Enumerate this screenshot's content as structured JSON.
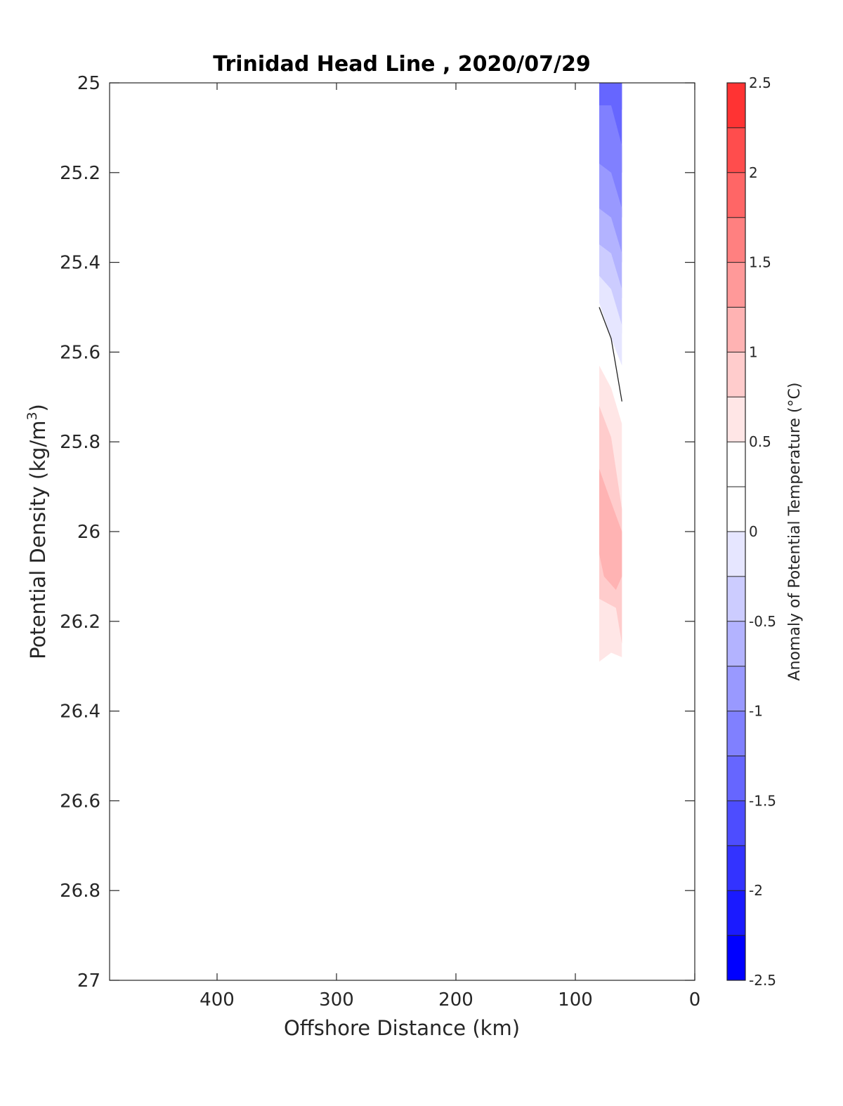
{
  "chart_data": {
    "type": "contourf",
    "title": "Trinidad Head Line , 2020/07/29",
    "xlabel": "Offshore Distance (km)",
    "ylabel": "Potential Density (kg/m",
    "ylabel_superscript": "3",
    "ylabel_suffix": ")",
    "xlim": [
      490,
      0
    ],
    "x_reversed": true,
    "ylim": [
      25,
      27
    ],
    "y_reversed": true,
    "xticks": [
      400,
      300,
      200,
      100,
      0
    ],
    "xtick_labels": [
      "400",
      "300",
      "200",
      "100",
      "0"
    ],
    "yticks": [
      25,
      25.2,
      25.4,
      25.6,
      25.8,
      26,
      26.2,
      26.4,
      26.6,
      26.8,
      27
    ],
    "ytick_labels": [
      "25",
      "25.2",
      "25.4",
      "25.6",
      "25.8",
      "26",
      "26.2",
      "26.4",
      "26.6",
      "26.8",
      "27"
    ],
    "colorbar": {
      "label": "Anomaly of Potential Temperature (°C)",
      "range": [
        -2.5,
        2.5
      ],
      "step": 0.25,
      "ticks": [
        2.5,
        2,
        1.5,
        1,
        0.5,
        0,
        -0.5,
        -1,
        -1.5,
        -2,
        -2.5
      ],
      "tick_labels": [
        "2.5",
        "2",
        "1.5",
        "1",
        "0.5",
        "0",
        "-0.5",
        "-1",
        "-1.5",
        "-2",
        "-2.5"
      ],
      "colors": [
        "#0000ff",
        "#1a1aff",
        "#3333ff",
        "#4d4dff",
        "#6666ff",
        "#8080ff",
        "#9999ff",
        "#b3b3ff",
        "#ccccff",
        "#e6e6ff",
        "#ffffff",
        "#ffffff",
        "#ffe6e6",
        "#ffcccc",
        "#ffb3b3",
        "#ff9999",
        "#ff8080",
        "#ff6666",
        "#ff4d4d",
        "#ff3333",
        "#ff1a1a",
        "#ff0000"
      ]
    },
    "contour_bands": [
      {
        "level": -1.75,
        "points": [
          [
            80,
            25
          ],
          [
            61,
            25
          ],
          [
            61,
            25.06
          ],
          [
            76,
            25.06
          ]
        ]
      },
      {
        "level": -1.5,
        "points": [
          [
            80,
            25
          ],
          [
            61,
            25
          ],
          [
            61,
            25.2
          ],
          [
            70,
            25.2
          ],
          [
            80,
            25.06
          ]
        ]
      },
      {
        "level": -1.25,
        "points": [
          [
            80,
            25.05
          ],
          [
            70,
            25.05
          ],
          [
            61,
            25.14
          ],
          [
            61,
            25.3
          ],
          [
            70,
            25.28
          ],
          [
            80,
            25.2
          ]
        ]
      },
      {
        "level": -1.0,
        "points": [
          [
            80,
            25.18
          ],
          [
            70,
            25.2
          ],
          [
            61,
            25.28
          ],
          [
            61,
            25.4
          ],
          [
            70,
            25.35
          ],
          [
            80,
            25.3
          ]
        ]
      },
      {
        "level": -0.75,
        "points": [
          [
            80,
            25.28
          ],
          [
            70,
            25.3
          ],
          [
            61,
            25.38
          ],
          [
            61,
            25.48
          ],
          [
            70,
            25.42
          ],
          [
            80,
            25.37
          ]
        ]
      },
      {
        "level": -0.5,
        "points": [
          [
            80,
            25.36
          ],
          [
            70,
            25.38
          ],
          [
            61,
            25.46
          ],
          [
            61,
            25.56
          ],
          [
            70,
            25.5
          ],
          [
            80,
            25.43
          ]
        ]
      },
      {
        "level": -0.25,
        "points": [
          [
            80,
            25.43
          ],
          [
            70,
            25.46
          ],
          [
            61,
            25.54
          ],
          [
            61,
            25.63
          ],
          [
            70,
            25.57
          ],
          [
            80,
            25.49
          ]
        ]
      },
      {
        "level": 0.25,
        "points": [
          [
            80,
            25.57
          ],
          [
            61,
            25.7
          ],
          [
            61,
            26.5
          ],
          [
            70,
            26.49
          ],
          [
            80,
            26.4
          ]
        ]
      },
      {
        "level": 0.5,
        "points": [
          [
            80,
            25.63
          ],
          [
            70,
            25.68
          ],
          [
            61,
            25.76
          ],
          [
            61,
            26.28
          ],
          [
            70,
            26.27
          ],
          [
            80,
            26.29
          ]
        ]
      },
      {
        "level": 0.75,
        "points": [
          [
            80,
            25.72
          ],
          [
            70,
            25.79
          ],
          [
            61,
            25.95
          ],
          [
            61,
            26.25
          ],
          [
            66,
            26.17
          ],
          [
            80,
            26.15
          ]
        ]
      },
      {
        "level": 1.0,
        "points": [
          [
            80,
            25.86
          ],
          [
            72,
            25.92
          ],
          [
            61,
            26.0
          ],
          [
            61,
            26.1
          ],
          [
            66,
            26.13
          ],
          [
            76,
            26.1
          ],
          [
            80,
            26.05
          ]
        ]
      }
    ],
    "zero_contour": [
      [
        80,
        25.5
      ],
      [
        70,
        25.57
      ],
      [
        61,
        25.71
      ]
    ]
  }
}
